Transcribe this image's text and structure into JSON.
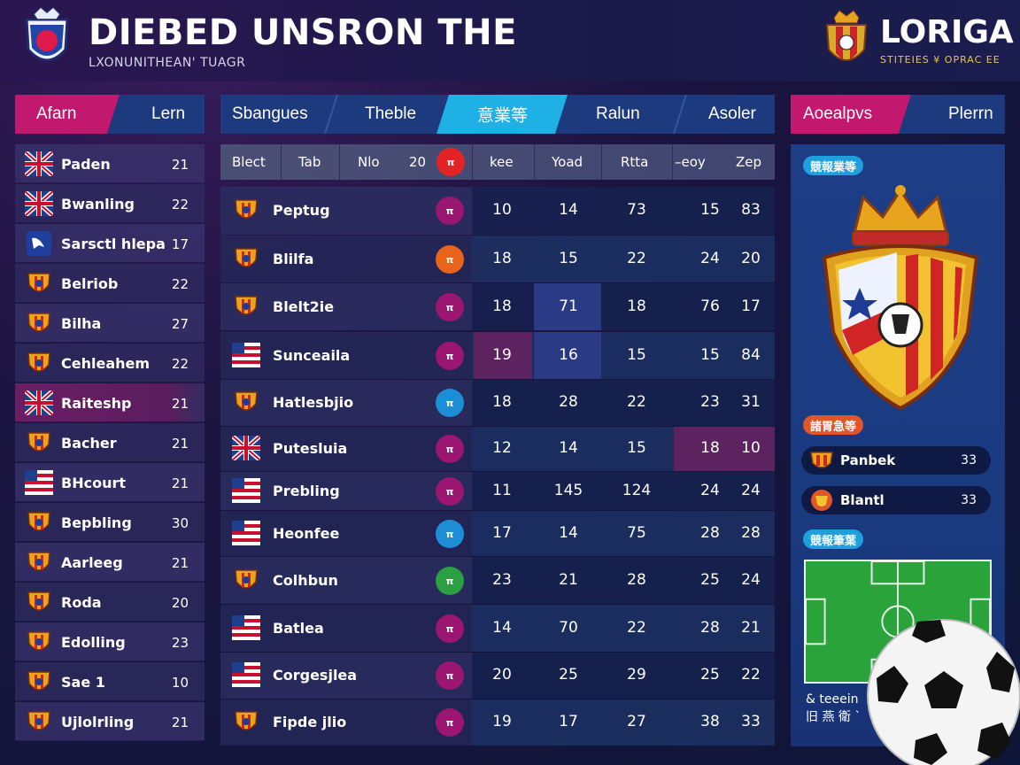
{
  "header": {
    "title": "DIEBED UNSRON THE",
    "subtitle": "LXONUNITHEAN' TUAGR",
    "brand": "LORIGA",
    "brand_sub": "STITEIES ¥ OPRAC EE"
  },
  "tabs_left": [
    "Afarn",
    "Lern"
  ],
  "tabs_main": [
    "Sbangues",
    "Theble",
    "意業等",
    "Ralun",
    "Asoler"
  ],
  "tabs_right": [
    "Aoealpvs",
    "Plerrn"
  ],
  "left_list": [
    {
      "name": "Paden",
      "points": "21",
      "icon": "uk-flag-icon"
    },
    {
      "name": "Bwanling",
      "points": "22",
      "icon": "uk-flag-icon"
    },
    {
      "name": "Sarsctl hlepa",
      "points": "17",
      "icon": "bird-crest-icon"
    },
    {
      "name": "Belriob",
      "points": "22",
      "icon": "club-crest-icon"
    },
    {
      "name": "Bilha",
      "points": "27",
      "icon": "club-crest-icon"
    },
    {
      "name": "Cehleahem",
      "points": "22",
      "icon": "club-crest-icon"
    },
    {
      "name": "Raiteshp",
      "points": "21",
      "icon": "uk-flag-icon"
    },
    {
      "name": "Bacher",
      "points": "21",
      "icon": "club-crest-icon"
    },
    {
      "name": "BHcourt",
      "points": "21",
      "icon": "flag-icon"
    },
    {
      "name": "Bepbling",
      "points": "30",
      "icon": "club-crest-icon"
    },
    {
      "name": "Aarleeg",
      "points": "21",
      "icon": "club-crest-icon"
    },
    {
      "name": "Roda",
      "points": "20",
      "icon": "club-crest-icon"
    },
    {
      "name": "Edolling",
      "points": "23",
      "icon": "club-crest-icon"
    },
    {
      "name": "Sae 1",
      "points": "10",
      "icon": "club-crest-icon"
    },
    {
      "name": "Ujlolrling",
      "points": "21",
      "icon": "club-crest-icon"
    }
  ],
  "table": {
    "columns": [
      "Blect",
      "Tab",
      "Nlo",
      "20",
      "kee",
      "Yoad",
      "Rtta",
      "–eoy",
      "Zep"
    ],
    "rows": [
      {
        "name": "Peptug",
        "badge": "#9a1670",
        "v": [
          "10",
          "14",
          "73",
          "15",
          "83"
        ]
      },
      {
        "name": "Blilfa",
        "badge": "#e8641c",
        "v": [
          "18",
          "15",
          "22",
          "24",
          "20"
        ]
      },
      {
        "name": "Blelt2ie",
        "badge": "#9a1670",
        "v": [
          "18",
          "71",
          "18",
          "76",
          "17"
        ]
      },
      {
        "name": "Sunceaila",
        "badge": "#9a1670",
        "v": [
          "19",
          "16",
          "15",
          "15",
          "84"
        ]
      },
      {
        "name": "Hatlesbjio",
        "badge": "#1d8ed6",
        "v": [
          "18",
          "28",
          "22",
          "23",
          "31"
        ]
      },
      {
        "name": "Putesluia",
        "badge": "#9a1670",
        "v": [
          "12",
          "14",
          "15",
          "18",
          "10"
        ]
      },
      {
        "name": "Prebling",
        "badge": "#9a1670",
        "v": [
          "11",
          "145",
          "124",
          "24",
          "24"
        ]
      },
      {
        "name": "Heonfee",
        "badge": "#1d8ed6",
        "v": [
          "17",
          "14",
          "75",
          "28",
          "28"
        ]
      },
      {
        "name": "Colhbun",
        "badge": "#2aa043",
        "v": [
          "23",
          "21",
          "28",
          "25",
          "24"
        ]
      },
      {
        "name": "Batlea",
        "badge": "#9a1670",
        "v": [
          "14",
          "70",
          "22",
          "28",
          "21"
        ]
      },
      {
        "name": "Corgesjlea",
        "badge": "#9a1670",
        "v": [
          "20",
          "25",
          "29",
          "25",
          "22"
        ]
      },
      {
        "name": "Fipde jlio",
        "badge": "#9a1670",
        "v": [
          "19",
          "17",
          "27",
          "38",
          "33"
        ]
      }
    ],
    "badge_glyph": "π"
  },
  "right": {
    "pill1": "競報業等",
    "pill2": "諸胃急等",
    "pill3": "競報筆葉",
    "players": [
      {
        "name": "Panbek",
        "points": "33"
      },
      {
        "name": "Blantl",
        "points": "33"
      }
    ],
    "foot_line1": "& teeein",
    "foot_line2": "旧 燕 衛 `"
  },
  "colors": {
    "accent_magenta": "#c2186e",
    "accent_cyan": "#1fb0e6",
    "panel_blue": "#1d3d86"
  }
}
